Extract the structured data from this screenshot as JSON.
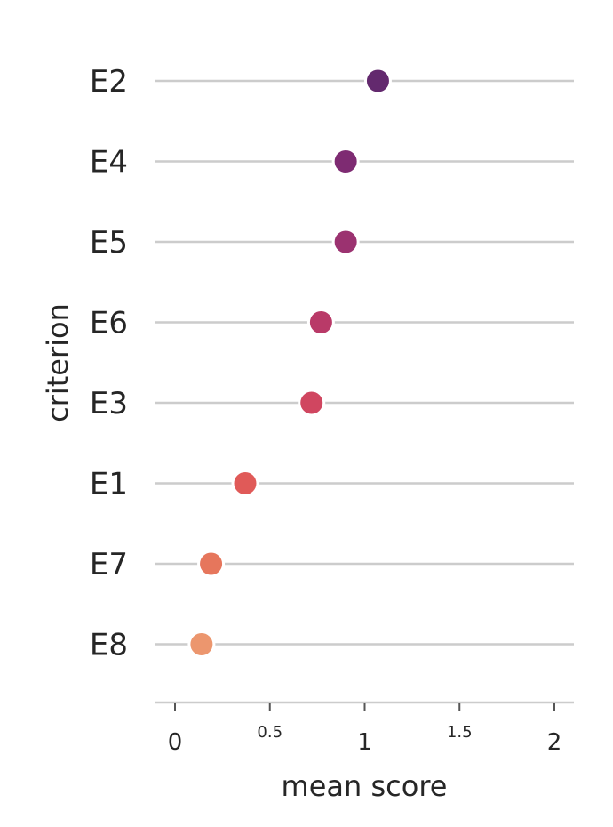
{
  "chart_data": {
    "type": "scatter",
    "title": "",
    "xlabel": "mean score",
    "ylabel": "criterion",
    "xlim": [
      -0.1,
      2.1
    ],
    "xticks": [
      {
        "value": 0,
        "label": "0",
        "major": true
      },
      {
        "value": 0.5,
        "label": "0.5",
        "major": false
      },
      {
        "value": 1,
        "label": "1",
        "major": true
      },
      {
        "value": 1.5,
        "label": "1.5",
        "major": false
      },
      {
        "value": 2,
        "label": "2",
        "major": true
      }
    ],
    "grid": false,
    "categories": [
      "E2",
      "E4",
      "E5",
      "E6",
      "E3",
      "E1",
      "E7",
      "E8"
    ],
    "values": [
      1.07,
      0.9,
      0.9,
      0.77,
      0.72,
      0.37,
      0.19,
      0.14
    ],
    "colors": [
      "#63296e",
      "#7e2b72",
      "#9b3270",
      "#b93a68",
      "#d04660",
      "#e05a58",
      "#e6765c",
      "#ec966e"
    ]
  }
}
